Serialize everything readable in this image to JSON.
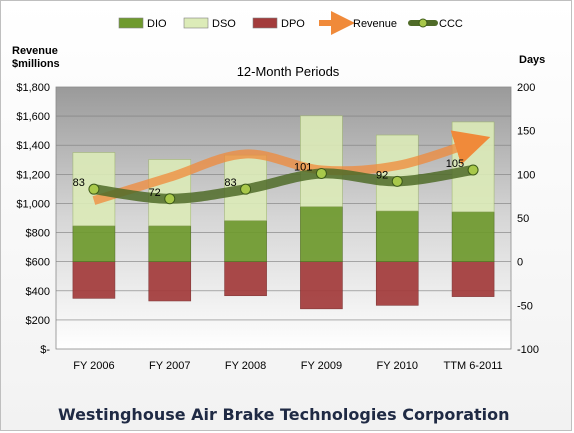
{
  "chart_data": {
    "type": "bar",
    "title": "12-Month Periods",
    "left_axis_title_line1": "Revenue",
    "left_axis_title_line2": "$millions",
    "right_axis_title": "Days",
    "left_ticks": [
      "$1,800",
      "$1,600",
      "$1,400",
      "$1,200",
      "$1,000",
      "$800",
      "$600",
      "$400",
      "$200",
      "$-"
    ],
    "right_ticks": [
      "200",
      "150",
      "100",
      "50",
      "0",
      "-50",
      "-100"
    ],
    "ylim_left": [
      0,
      1800
    ],
    "ylim_right": [
      -100,
      200
    ],
    "categories": [
      "FY 2006",
      "FY 2007",
      "FY 2008",
      "FY 2009",
      "FY 2010",
      "TTM 6-2011"
    ],
    "series": [
      {
        "name": "DIO",
        "color": "#6f9a2e",
        "values": [
          41,
          41,
          47,
          63,
          58,
          57
        ]
      },
      {
        "name": "DSO",
        "color": "#dcebb8",
        "values": [
          84,
          76,
          75,
          104,
          87,
          103
        ]
      },
      {
        "name": "DPO",
        "color": "#a33b3b",
        "values": [
          42,
          45,
          39,
          54,
          50,
          40
        ]
      },
      {
        "name": "Revenue",
        "color": "#f08a3a",
        "values": [
          1020,
          1180,
          1340,
          1230,
          1260,
          1420
        ]
      },
      {
        "name": "CCC",
        "color": "#4f6b28",
        "values": [
          83,
          72,
          83,
          101,
          92,
          105
        ]
      }
    ],
    "ccc_labels": [
      "83",
      "72",
      "83",
      "101",
      "92",
      "105"
    ],
    "grid": true,
    "legend_position": "top"
  },
  "footer_text": "Westinghouse Air Brake Technologies Corporation"
}
